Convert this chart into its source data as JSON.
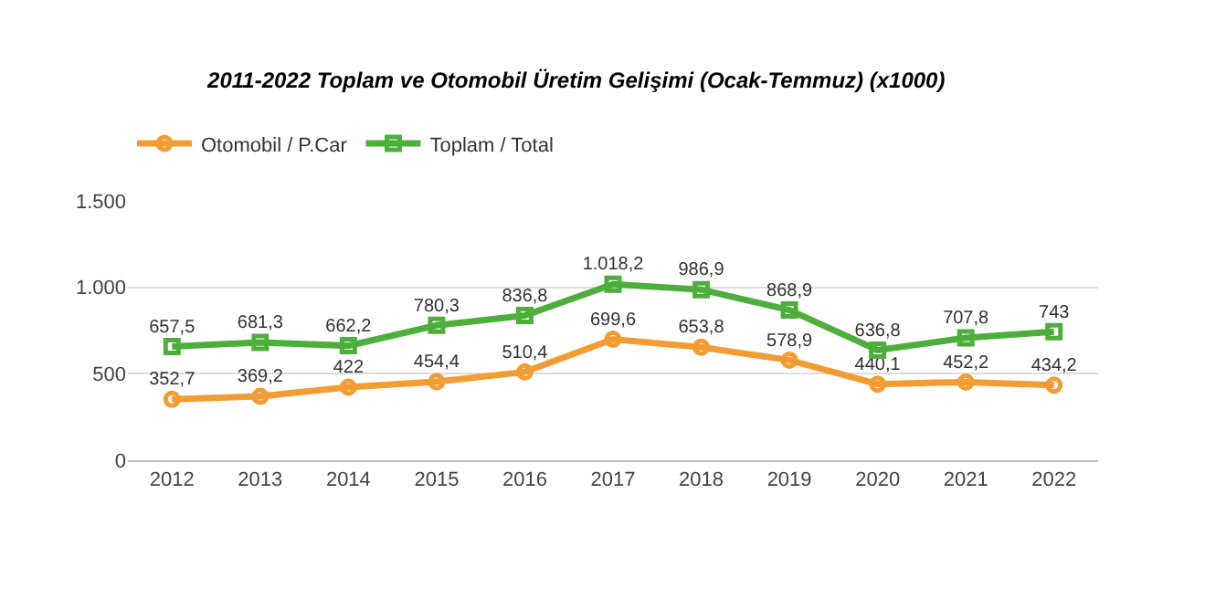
{
  "chart_data": {
    "type": "line",
    "title": "2011-2022 Toplam ve Otomobil Üretim Gelişimi (Ocak-Temmuz) (x1000)",
    "categories": [
      "2012",
      "2013",
      "2014",
      "2015",
      "2016",
      "2017",
      "2018",
      "2019",
      "2020",
      "2021",
      "2022"
    ],
    "series": [
      {
        "name": "Otomobil / P.Car",
        "color": "#f39c34",
        "marker": "circle",
        "values": [
          352.7,
          369.2,
          422,
          454.4,
          510.4,
          699.6,
          653.8,
          578.9,
          440.1,
          452.2,
          434.2
        ],
        "value_labels": [
          "352,7",
          "369,2",
          "422",
          "454,4",
          "510,4",
          "699,6",
          "653,8",
          "578,9",
          "440,1",
          "452,2",
          "434,2"
        ]
      },
      {
        "name": "Toplam / Total",
        "color": "#4caf3b",
        "marker": "square",
        "values": [
          657.5,
          681.3,
          662.2,
          780.3,
          836.8,
          1018.2,
          986.9,
          868.9,
          636.8,
          707.8,
          743
        ],
        "value_labels": [
          "657,5",
          "681,3",
          "662,2",
          "780,3",
          "836,8",
          "1.018,2",
          "986,9",
          "868,9",
          "636,8",
          "707,8",
          "743"
        ]
      }
    ],
    "ylim": [
      0,
      1500
    ],
    "yticks": [
      0,
      500,
      {
        "value": 1000,
        "label": "1.000"
      },
      {
        "value": 1500,
        "label": "1.500"
      }
    ],
    "grid": "y",
    "legend": "top left",
    "line_style": "solid"
  }
}
